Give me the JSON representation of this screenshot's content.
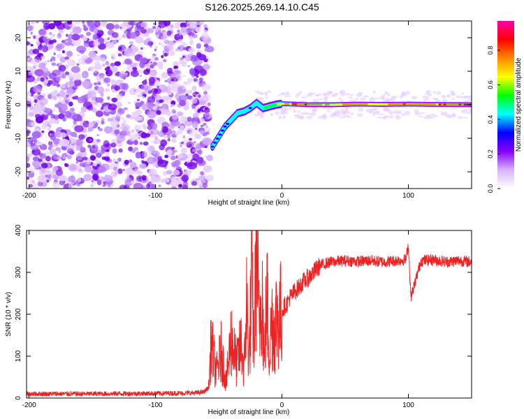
{
  "title": "S126.2025.269.14.10.C45",
  "chart_data": [
    {
      "type": "heatmap",
      "name": "spectrogram",
      "xlabel": "Height of straight line (km)",
      "ylabel": "Frequency (Hz)",
      "xlim": [
        -202,
        150
      ],
      "ylim": [
        -25,
        25
      ],
      "xticks": [
        -200,
        -100,
        0,
        100
      ],
      "yticks": [
        -20,
        -10,
        0,
        10,
        20
      ],
      "noise_region_x": [
        -202,
        -57
      ],
      "ridge": {
        "x": [
          -55,
          -50,
          -45,
          -40,
          -35,
          -30,
          -25,
          -20,
          -15,
          -10,
          -5,
          0,
          10,
          20,
          40,
          60,
          80,
          100,
          120,
          150
        ],
        "freq": [
          -12.5,
          -9.5,
          -6.5,
          -4.5,
          -2.5,
          -2.0,
          -1.0,
          0.5,
          -1.0,
          -0.5,
          0.0,
          0.3,
          0.2,
          0.0,
          0.0,
          0.2,
          0.1,
          0.2,
          0.1,
          0.0
        ],
        "amplitude": [
          0.3,
          0.35,
          0.4,
          0.45,
          0.5,
          0.45,
          0.4,
          0.45,
          0.5,
          0.55,
          0.65,
          0.75,
          0.85,
          0.9,
          0.7,
          0.8,
          0.7,
          0.85,
          0.8,
          0.9
        ]
      },
      "colorbar": {
        "label": "Normalized spectral amplitude",
        "ticks": [
          "0.0",
          "0.2",
          "0.4",
          "0.6",
          "0.8"
        ],
        "range": [
          0,
          0.97
        ],
        "colors": [
          "#ffffff",
          "#d9b3ff",
          "#8800ff",
          "#0000ff",
          "#00ffff",
          "#00ff00",
          "#ffff00",
          "#ff8800",
          "#ff0000",
          "#ff00aa"
        ]
      }
    },
    {
      "type": "line",
      "name": "snr",
      "xlabel": "Height of straight line (km)",
      "ylabel": "SNR (10 * v/v)",
      "xlim": [
        -202,
        150
      ],
      "ylim": [
        0,
        400
      ],
      "xticks": [
        -200,
        -100,
        0,
        100
      ],
      "yticks": [
        0,
        100,
        200,
        300,
        400
      ],
      "color": "#ee2222",
      "series": [
        {
          "name": "SNR",
          "x": [
            -202,
            -150,
            -100,
            -70,
            -62,
            -58,
            -56,
            -52,
            -48,
            -44,
            -40,
            -36,
            -32,
            -30,
            -28,
            -26,
            -24,
            -22,
            -20,
            -18,
            -16,
            -14,
            -12,
            -10,
            -8,
            -6,
            -4,
            -2,
            0,
            2,
            4,
            6,
            8,
            10,
            12,
            14,
            16,
            18,
            20,
            22,
            25,
            28,
            30,
            35,
            40,
            50,
            60,
            70,
            80,
            90,
            98,
            100,
            102,
            110,
            120,
            130,
            140,
            150
          ],
          "y": [
            10,
            10,
            11,
            12,
            14,
            25,
            130,
            60,
            110,
            40,
            150,
            80,
            130,
            60,
            230,
            90,
            280,
            130,
            390,
            150,
            300,
            80,
            250,
            100,
            190,
            160,
            200,
            190,
            205,
            220,
            225,
            240,
            245,
            255,
            260,
            265,
            275,
            280,
            285,
            290,
            300,
            310,
            315,
            322,
            325,
            328,
            326,
            328,
            325,
            328,
            330,
            365,
            240,
            328,
            330,
            325,
            328,
            325
          ]
        }
      ]
    }
  ]
}
